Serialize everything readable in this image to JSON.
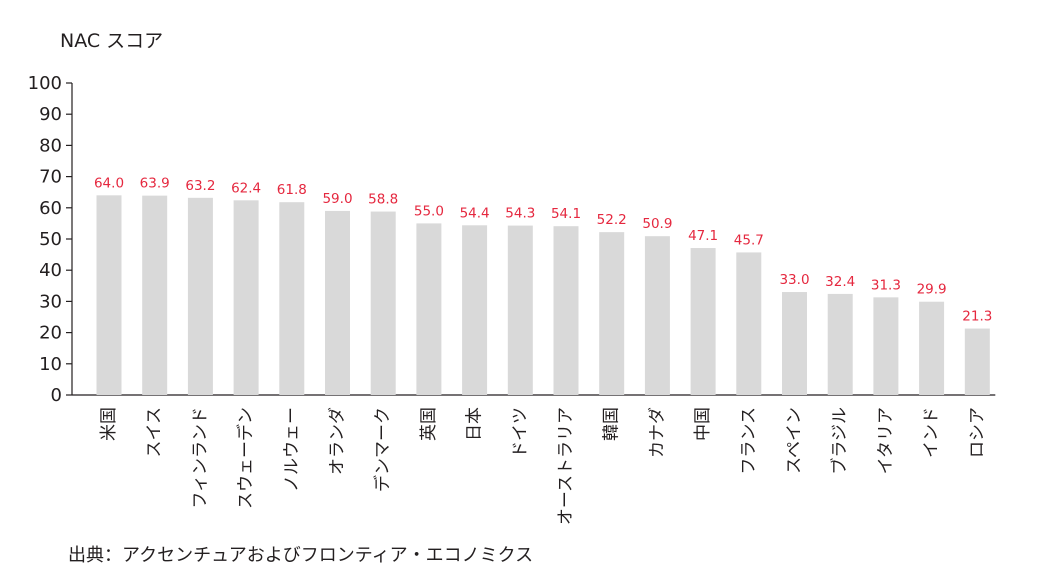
{
  "chart_data": {
    "type": "bar",
    "ylabel": "NAC スコア",
    "ylim": [
      0,
      100
    ],
    "yticks": [
      0,
      10,
      20,
      30,
      40,
      50,
      60,
      70,
      80,
      90,
      100
    ],
    "categories": [
      "米国",
      "スイス",
      "フィンランド",
      "スウェーデン",
      "ノルウェー",
      "オランダ",
      "デンマーク",
      "英国",
      "日本",
      "ドイツ",
      "オーストラリア",
      "韓国",
      "カナダ",
      "中国",
      "フランス",
      "スペイン",
      "ブラジル",
      "イタリア",
      "インド",
      "ロシア"
    ],
    "values": [
      64.0,
      63.9,
      63.2,
      62.4,
      61.8,
      59.0,
      58.8,
      55.0,
      54.4,
      54.3,
      54.1,
      52.2,
      50.9,
      47.1,
      45.7,
      33.0,
      32.4,
      31.3,
      29.9,
      21.3
    ],
    "value_labels": [
      "64.0",
      "63.9",
      "63.2",
      "62.4",
      "61.8",
      "59.0",
      "58.8",
      "55.0",
      "54.4",
      "54.3",
      "54.1",
      "52.2",
      "50.9",
      "47.1",
      "45.7",
      "33.0",
      "32.4",
      "31.3",
      "29.9",
      "21.3"
    ],
    "bar_color": "#d9d9d9",
    "label_color": "#e5283f",
    "axis_color": "#231f20",
    "grid": false,
    "legend": "none"
  },
  "source": "出典：アクセンチュアおよびフロンティア・エコノミクス"
}
